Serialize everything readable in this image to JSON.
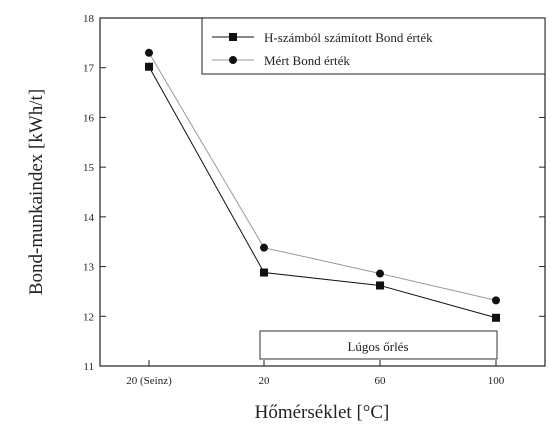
{
  "chart_data": {
    "type": "line",
    "categories": [
      "20 (Seinz)",
      "20",
      "60",
      "100"
    ],
    "xlabel": "Hőmérséklet [°C]",
    "ylabel": "Bond-munkaindex [kWh/t]",
    "ylim": [
      11,
      18
    ],
    "yticks": [
      "11",
      "12",
      "13",
      "14",
      "15",
      "16",
      "17",
      "18"
    ],
    "grid": false,
    "legend_position": "top-right",
    "annotation": "Lúgos őrlés",
    "series": [
      {
        "name": "H-számból számított Bond érték",
        "marker": "square",
        "color": "#111111",
        "values": [
          17.02,
          12.88,
          12.62,
          11.97
        ]
      },
      {
        "name": "Mért Bond érték",
        "marker": "circle",
        "color": "#999999",
        "values": [
          17.3,
          13.38,
          12.86,
          12.32
        ]
      }
    ]
  }
}
